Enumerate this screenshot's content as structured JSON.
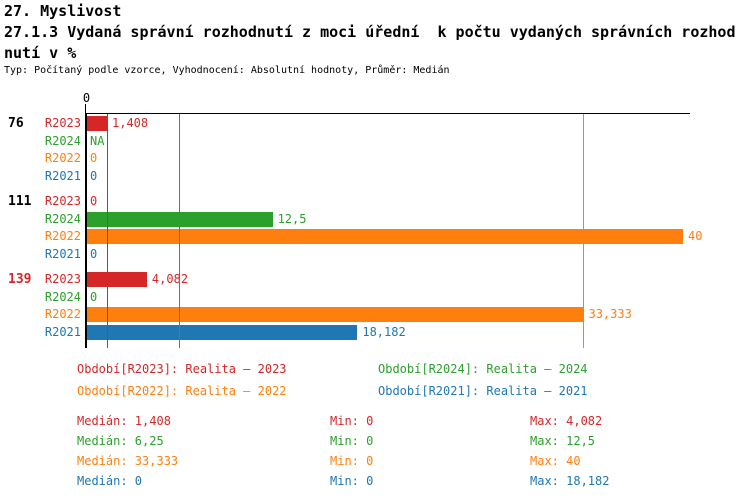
{
  "header": {
    "chapter": "27. Myslivost",
    "title_lines": [
      "27.1.3 Vydaná správní rozhodnutí z moci úřední  k počtu vydaných správních rozhod",
      "nutí v %"
    ],
    "meta": "Typ: Počítaný podle vzorce, Vyhodnocení: Absolutní hodnoty, Průměr: Medián"
  },
  "colors": {
    "R2023": "#d62728",
    "R2024": "#2ca02c",
    "R2022": "#ff7f0e",
    "R2021": "#1f77b4",
    "axis": "#000000"
  },
  "chart_data": {
    "type": "bar",
    "orientation": "horizontal",
    "x_axis": {
      "origin_label": "0",
      "range": [
        0,
        40.4
      ],
      "grid": false
    },
    "series_order": [
      "R2023",
      "R2024",
      "R2022",
      "R2021"
    ],
    "groups": [
      {
        "label": "76",
        "label_color": "#000000",
        "rows": [
          {
            "series": "R2023",
            "value": 1.408,
            "display": "1,408"
          },
          {
            "series": "R2024",
            "value": null,
            "display": "NA"
          },
          {
            "series": "R2022",
            "value": 0,
            "display": "0"
          },
          {
            "series": "R2021",
            "value": 0,
            "display": "0"
          }
        ]
      },
      {
        "label": "111",
        "label_color": "#000000",
        "rows": [
          {
            "series": "R2023",
            "value": 0,
            "display": "0"
          },
          {
            "series": "R2024",
            "value": 12.5,
            "display": "12,5"
          },
          {
            "series": "R2022",
            "value": 40,
            "display": "40"
          },
          {
            "series": "R2021",
            "value": 0,
            "display": "0"
          }
        ]
      },
      {
        "label": "139",
        "label_color": "#d62728",
        "rows": [
          {
            "series": "R2023",
            "value": 4.082,
            "display": "4,082"
          },
          {
            "series": "R2024",
            "value": 0,
            "display": "0"
          },
          {
            "series": "R2022",
            "value": 33.333,
            "display": "33,333"
          },
          {
            "series": "R2021",
            "value": 18.182,
            "display": "18,182"
          }
        ]
      }
    ],
    "median_lines": [
      {
        "series": "R2023",
        "value": 1.408
      },
      {
        "series": "R2024",
        "value": 6.25
      },
      {
        "series": "R2022",
        "value": 33.333
      },
      {
        "series": "R2021",
        "value": 0
      }
    ]
  },
  "legend": [
    {
      "series": "R2023",
      "label": "Období[R2023]: Realita – 2023"
    },
    {
      "series": "R2024",
      "label": "Období[R2024]: Realita – 2024"
    },
    {
      "series": "R2022",
      "label": "Období[R2022]: Realita – 2022"
    },
    {
      "series": "R2021",
      "label": "Období[R2021]: Realita – 2021"
    }
  ],
  "stats": [
    {
      "series": "R2023",
      "median": "Medián: 1,408",
      "min": "Min: 0",
      "max": "Max: 4,082"
    },
    {
      "series": "R2024",
      "median": "Medián: 6,25",
      "min": "Min: 0",
      "max": "Max: 12,5"
    },
    {
      "series": "R2022",
      "median": "Medián: 33,333",
      "min": "Min: 0",
      "max": "Max: 40"
    },
    {
      "series": "R2021",
      "median": "Medián: 0",
      "min": "Min: 0",
      "max": "Max: 18,182"
    }
  ]
}
